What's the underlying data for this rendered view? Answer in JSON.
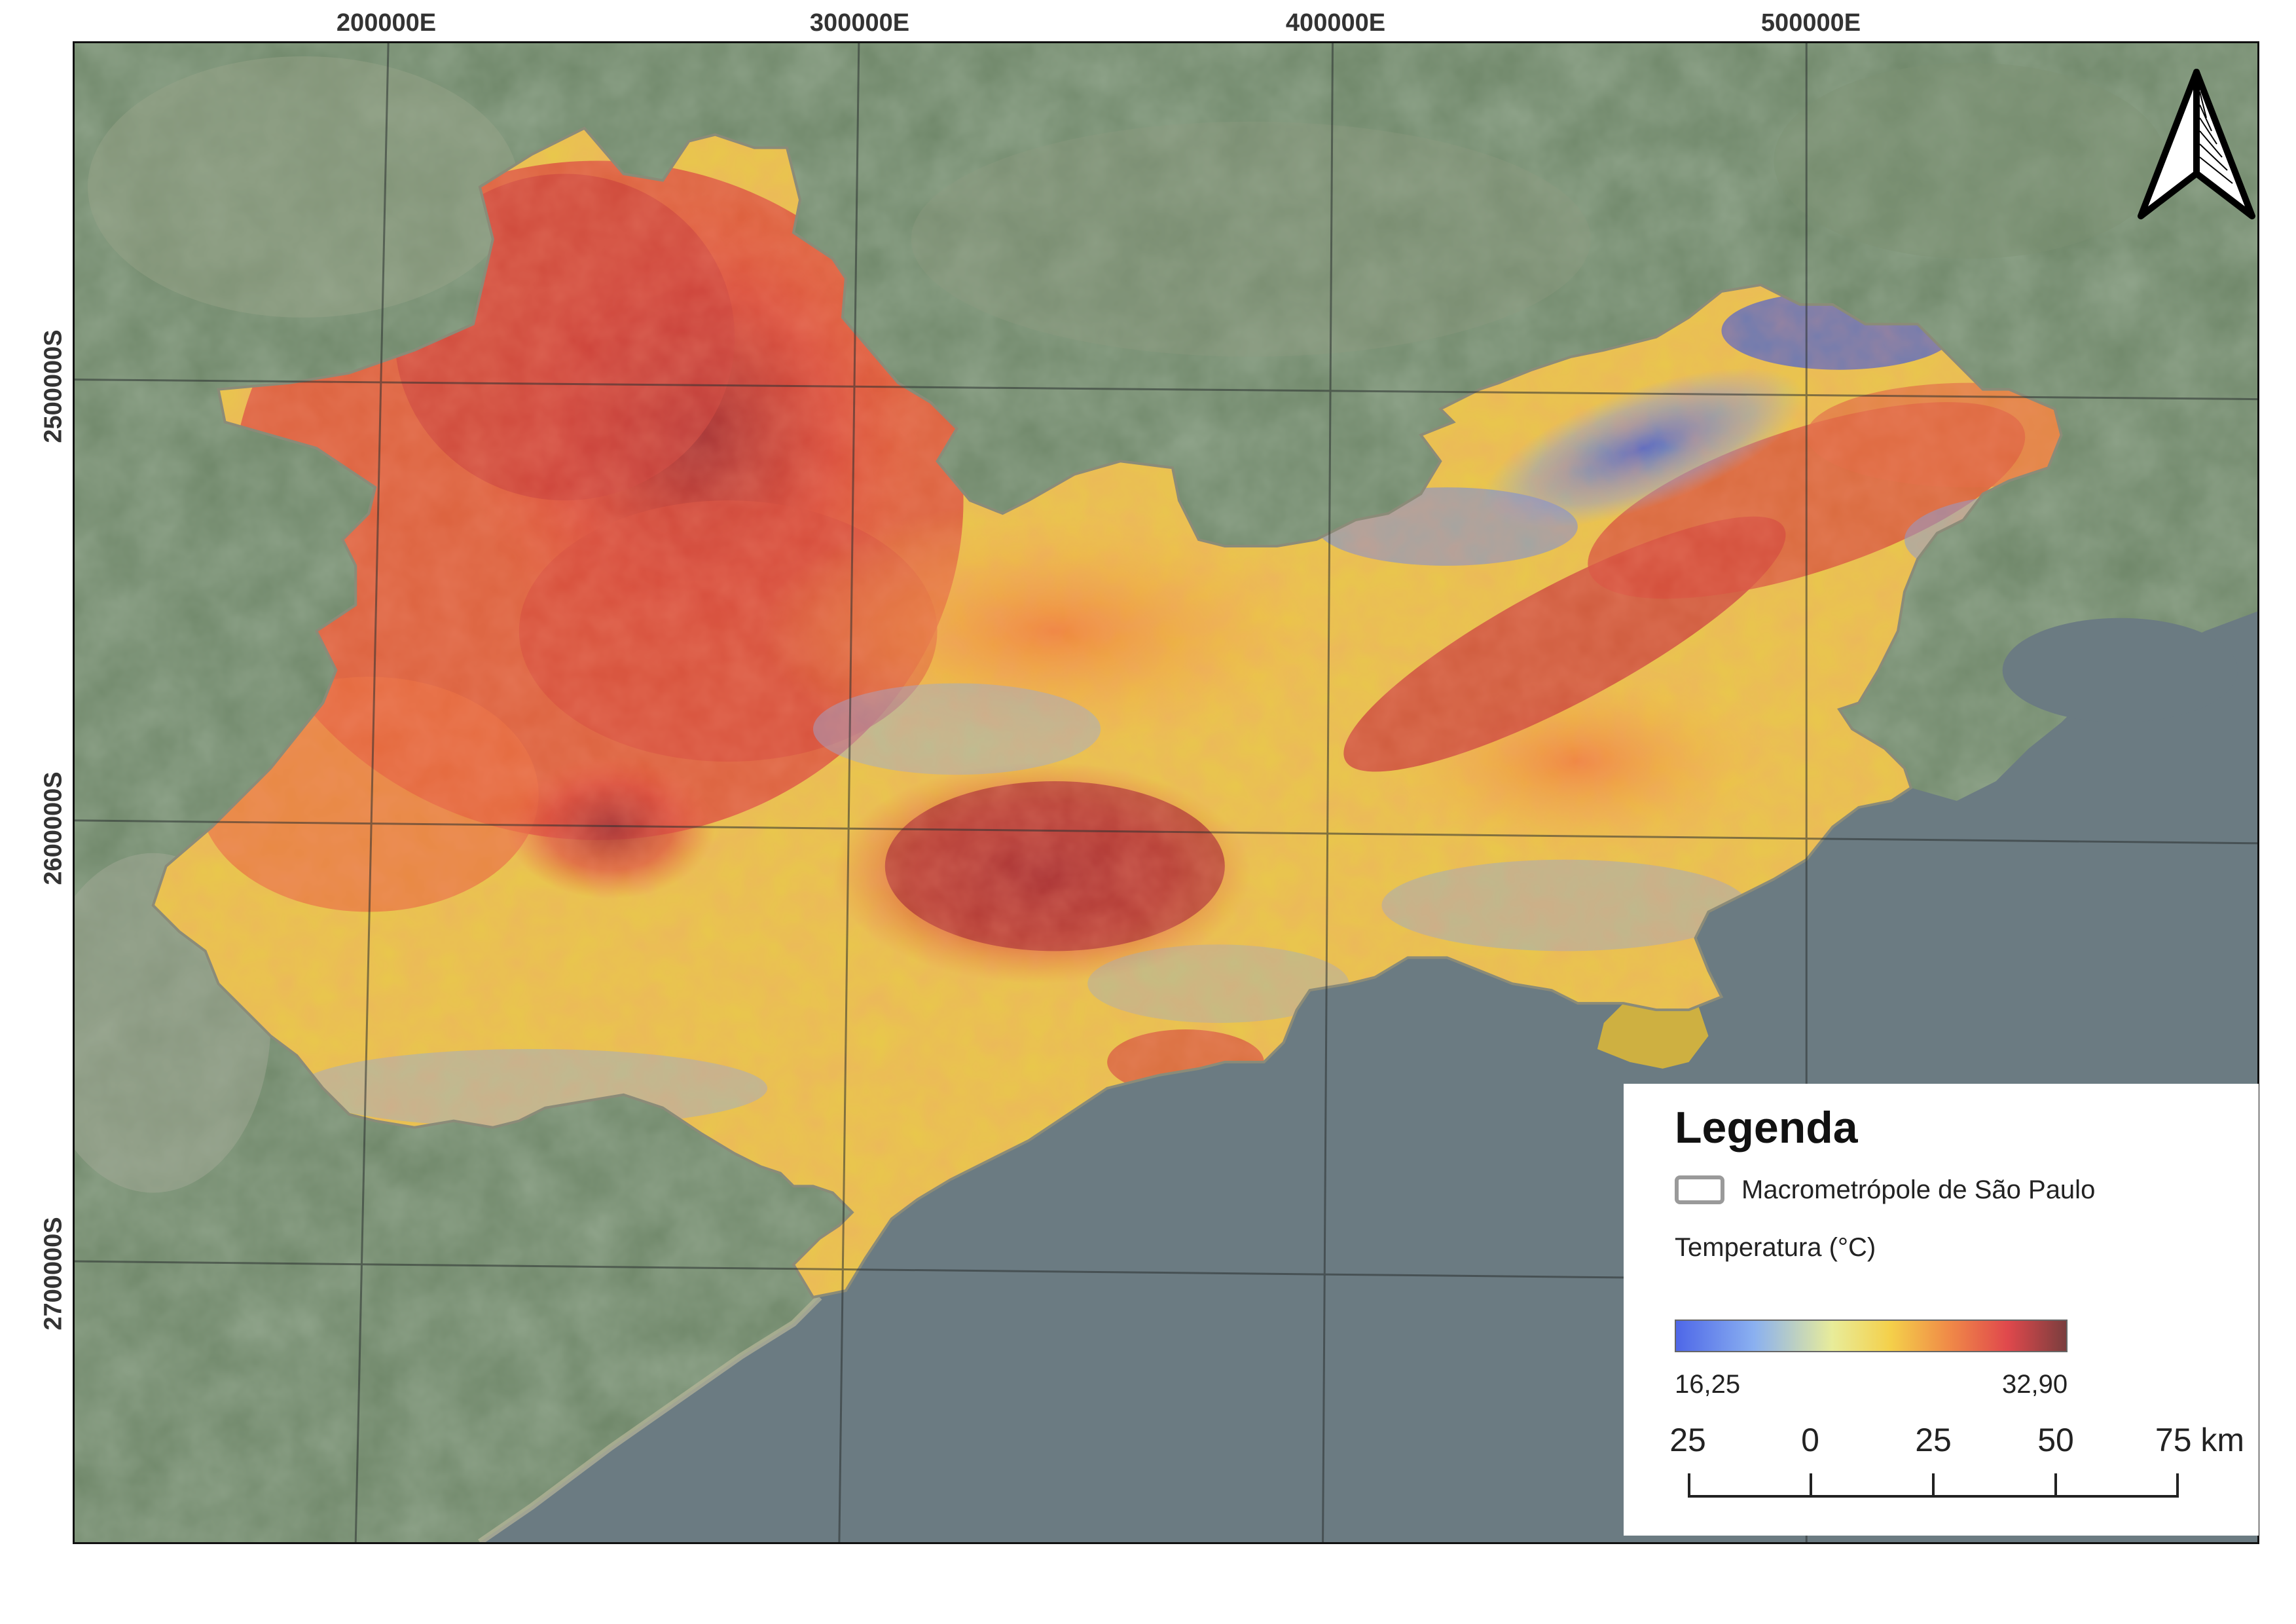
{
  "map": {
    "grid_labels_x": [
      "200000E",
      "300000E",
      "400000E",
      "500000E"
    ],
    "grid_labels_y": [
      "2500000S",
      "2600000S",
      "2700000S"
    ],
    "north_arrow_icon": "north-arrow-icon",
    "colors": {
      "land": "#6f8a6a",
      "ocean": "#6f7f86",
      "region_outline": "#9a9a9a",
      "temp_low": "#4e67e8",
      "temp_mid": "#f4d04a",
      "temp_high": "#7a3e3e"
    }
  },
  "legend": {
    "title": "Legenda",
    "outline_label": "Macrometrópole de São Paulo",
    "temperature_label": "Temperatura (°C)",
    "ramp_min": "16,25",
    "ramp_max": "32,90",
    "scale_labels": [
      "25",
      "0",
      "25",
      "50",
      "75 km"
    ]
  }
}
